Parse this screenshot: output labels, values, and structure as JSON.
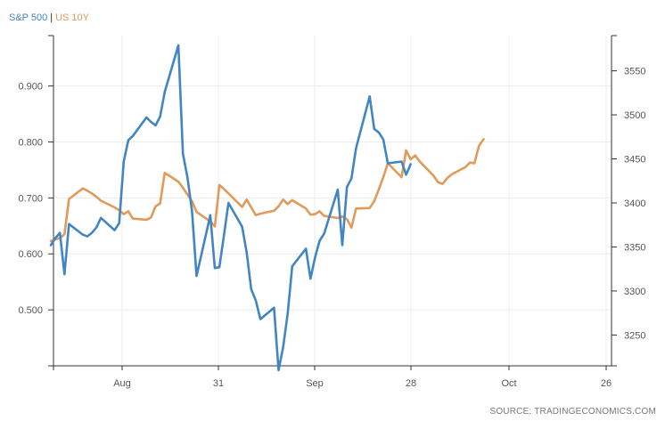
{
  "chart_data": {
    "type": "line",
    "legend": [
      {
        "key": "sp500",
        "label": "S&P 500",
        "color": "#4186c2"
      },
      {
        "key": "us10y",
        "label": "US 10Y",
        "color": "#e09a5a"
      }
    ],
    "legend_placement": "top-left",
    "x_tick_labels": [
      "Aug",
      "31",
      "Sep",
      "28",
      "Oct",
      "26"
    ],
    "left_axis": {
      "tick_labels": [
        "0.500",
        "0.600",
        "0.700",
        "0.800",
        "0.900"
      ],
      "ylim": [
        0.4,
        0.99
      ]
    },
    "right_axis": {
      "tick_labels": [
        "3250",
        "3300",
        "3350",
        "3400",
        "3450",
        "3500",
        "3550"
      ],
      "ylim": [
        3215,
        3590
      ]
    },
    "grid": true,
    "series": [
      {
        "name": "US 10Y",
        "axis": "left",
        "color": "#e09a5a",
        "points": [
          [
            "Jul 13",
            0.623
          ],
          [
            "Jul 14",
            0.626
          ],
          [
            "Jul 15",
            0.628
          ],
          [
            "Jul 16",
            0.635
          ],
          [
            "Jul 17",
            0.698
          ],
          [
            "Jul 20",
            0.717
          ],
          [
            "Jul 21",
            0.713
          ],
          [
            "Jul 22",
            0.708
          ],
          [
            "Jul 23",
            0.702
          ],
          [
            "Jul 24",
            0.695
          ],
          [
            "Jul 27",
            0.683
          ],
          [
            "Jul 28",
            0.678
          ],
          [
            "Jul 29",
            0.671
          ],
          [
            "Jul 30",
            0.676
          ],
          [
            "Jul 31",
            0.663
          ],
          [
            "Aug 3",
            0.661
          ],
          [
            "Aug 4",
            0.665
          ],
          [
            "Aug 5",
            0.685
          ],
          [
            "Aug 6",
            0.69
          ],
          [
            "Aug 7",
            0.745
          ],
          [
            "Aug 10",
            0.729
          ],
          [
            "Aug 11",
            0.718
          ],
          [
            "Aug 12",
            0.706
          ],
          [
            "Aug 13",
            0.694
          ],
          [
            "Aug 14",
            0.675
          ],
          [
            "Aug 17",
            0.658
          ],
          [
            "Aug 18",
            0.649
          ],
          [
            "Aug 19",
            0.723
          ],
          [
            "Aug 20",
            0.716
          ],
          [
            "Aug 21",
            0.708
          ],
          [
            "Aug 24",
            0.684
          ],
          [
            "Aug 25",
            0.697
          ],
          [
            "Aug 26",
            0.683
          ],
          [
            "Aug 27",
            0.669
          ],
          [
            "Aug 28",
            0.672
          ],
          [
            "Aug 31",
            0.677
          ],
          [
            "Sep 1",
            0.685
          ],
          [
            "Sep 2",
            0.697
          ],
          [
            "Sep 3",
            0.689
          ],
          [
            "Sep 4",
            0.696
          ],
          [
            "Sep 7",
            0.681
          ],
          [
            "Sep 8",
            0.67
          ],
          [
            "Sep 9",
            0.671
          ],
          [
            "Sep 10",
            0.676
          ],
          [
            "Sep 11",
            0.668
          ],
          [
            "Sep 14",
            0.664
          ],
          [
            "Sep 15",
            0.667
          ],
          [
            "Sep 16",
            0.662
          ],
          [
            "Sep 17",
            0.647
          ],
          [
            "Sep 18",
            0.681
          ],
          [
            "Sep 21",
            0.682
          ],
          [
            "Sep 22",
            0.694
          ],
          [
            "Sep 23",
            0.715
          ],
          [
            "Sep 24",
            0.737
          ],
          [
            "Sep 25",
            0.762
          ],
          [
            "Sep 28",
            0.737
          ],
          [
            "Sep 29",
            0.785
          ],
          [
            "Sep 30",
            0.769
          ],
          [
            "Oct 1",
            0.776
          ],
          [
            "Oct 2",
            0.765
          ],
          [
            "Oct 5",
            0.74
          ],
          [
            "Oct 6",
            0.728
          ],
          [
            "Oct 7",
            0.725
          ],
          [
            "Oct 8",
            0.735
          ],
          [
            "Oct 9",
            0.742
          ],
          [
            "Oct 12",
            0.755
          ],
          [
            "Oct 13",
            0.763
          ],
          [
            "Oct 14",
            0.762
          ],
          [
            "Oct 15",
            0.793
          ],
          [
            "Oct 16",
            0.805
          ]
        ]
      },
      {
        "name": "S&P 500",
        "axis": "right",
        "color": "#4186c2",
        "points": [
          [
            "Jul 13",
            3352
          ],
          [
            "Jul 14",
            3360
          ],
          [
            "Jul 15",
            3366
          ],
          [
            "Jul 16",
            3319
          ],
          [
            "Jul 17",
            3376
          ],
          [
            "Jul 20",
            3364
          ],
          [
            "Jul 21",
            3362
          ],
          [
            "Jul 22",
            3366
          ],
          [
            "Jul 23",
            3372
          ],
          [
            "Jul 24",
            3383
          ],
          [
            "Jul 27",
            3369
          ],
          [
            "Jul 28",
            3377
          ],
          [
            "Jul 29",
            3447
          ],
          [
            "Jul 30",
            3471
          ],
          [
            "Jul 31",
            3476
          ],
          [
            "Aug 3",
            3497
          ],
          [
            "Aug 4",
            3492
          ],
          [
            "Aug 5",
            3488
          ],
          [
            "Aug 6",
            3498
          ],
          [
            "Aug 7",
            3526
          ],
          [
            "Aug 10",
            3579
          ],
          [
            "Aug 11",
            3456
          ],
          [
            "Aug 12",
            3429
          ],
          [
            "Aug 13",
            3391
          ],
          [
            "Aug 14",
            3317
          ],
          [
            "Aug 17",
            3386
          ],
          [
            "Aug 18",
            3326
          ],
          [
            "Aug 19",
            3327
          ],
          [
            "Aug 20",
            3363
          ],
          [
            "Aug 21",
            3400
          ],
          [
            "Aug 24",
            3373
          ],
          [
            "Aug 25",
            3344
          ],
          [
            "Aug 26",
            3302
          ],
          [
            "Aug 27",
            3289
          ],
          [
            "Aug 28",
            3268
          ],
          [
            "Aug 31",
            3281
          ],
          [
            "Sep 1",
            3210
          ],
          [
            "Sep 2",
            3236
          ],
          [
            "Sep 3",
            3274
          ],
          [
            "Sep 4",
            3328
          ],
          [
            "Sep 7",
            3348
          ],
          [
            "Sep 8",
            3314
          ],
          [
            "Sep 9",
            3338
          ],
          [
            "Sep 10",
            3357
          ],
          [
            "Sep 11",
            3365
          ],
          [
            "Sep 14",
            3415
          ],
          [
            "Sep 15",
            3352
          ],
          [
            "Sep 16",
            3418
          ],
          [
            "Sep 17",
            3428
          ],
          [
            "Sep 18",
            3462
          ],
          [
            "Sep 21",
            3521
          ],
          [
            "Sep 22",
            3484
          ],
          [
            "Sep 23",
            3480
          ],
          [
            "Sep 24",
            3472
          ],
          [
            "Sep 25",
            3445
          ],
          [
            "Sep 28",
            3447
          ],
          [
            "Sep 29",
            3432
          ],
          [
            "Sep 30",
            3444
          ]
        ]
      }
    ]
  },
  "source_text": "SOURCE: TRADINGECONOMICS.COM"
}
